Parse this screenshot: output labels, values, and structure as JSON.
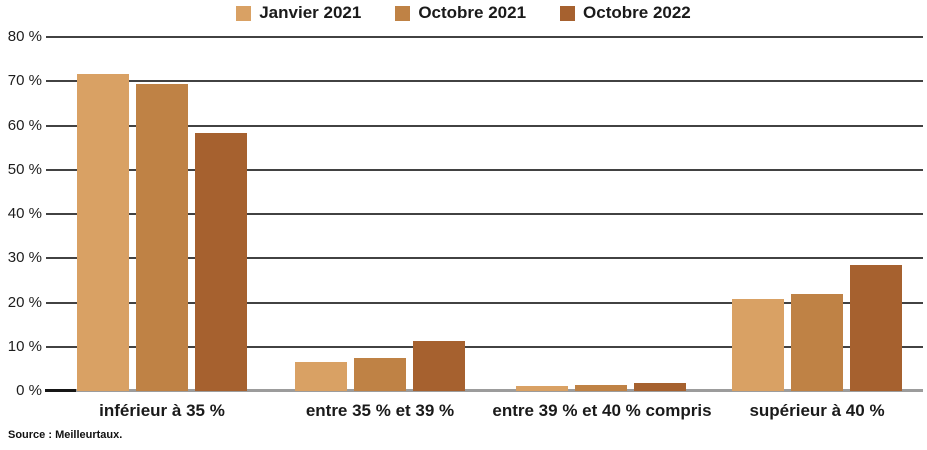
{
  "chart_data": {
    "type": "bar",
    "title": "",
    "categories": [
      "inférieur à 35 %",
      "entre 35 % et 39 %",
      "entre 39 % et 40 % compris",
      "supérieur à 40 %"
    ],
    "series": [
      {
        "name": "Janvier 2021",
        "color": "#D9A164",
        "values": [
          71.6,
          6.5,
          1.2,
          20.7
        ]
      },
      {
        "name": "Octobre 2021",
        "color": "#BF8245",
        "values": [
          69.4,
          7.4,
          1.3,
          21.9
        ]
      },
      {
        "name": "Octobre 2022",
        "color": "#A6612F",
        "values": [
          58.3,
          11.4,
          1.9,
          28.4
        ]
      }
    ],
    "xlabel": "",
    "ylabel": "",
    "ylim": [
      0,
      80
    ],
    "ytick_step": 10,
    "yticks": [
      "0 %",
      "10 %",
      "20 %",
      "30 %",
      "40 %",
      "50 %",
      "60 %",
      "70 %",
      "80 %"
    ],
    "grid": true,
    "legend_position": "top",
    "gridline_color": "#424242",
    "baseline_color": "#9c9c9c"
  },
  "source": "Source : Meilleurtaux."
}
